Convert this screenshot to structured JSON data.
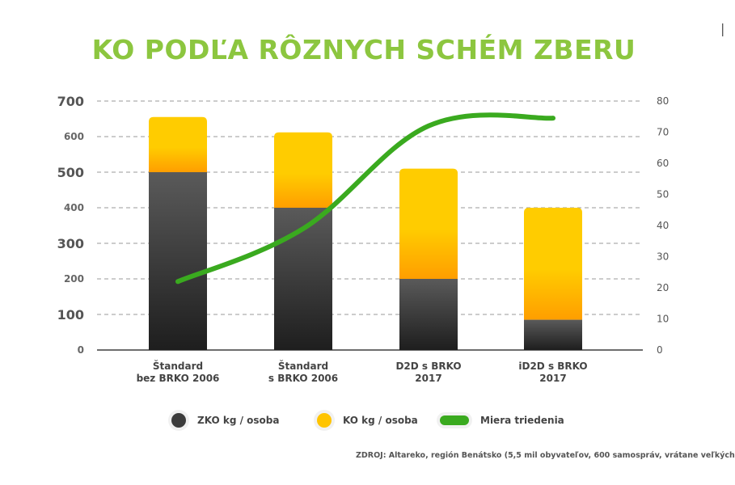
{
  "title": "KO PODĽA RÔZNYCH SCHÉM ZBERU",
  "corner_mark": "|",
  "legend": {
    "zko": "ZKO kg / osoba",
    "ko": "KO kg / osoba",
    "rate": "Miera triedenia"
  },
  "source": "ZDROJ: Altareko, región Benátsko (5,5 mil obyvateľov, 600 samospráv, vrátane veľkých",
  "colors": {
    "title": "#8cc63f",
    "zko_top": "#5a5a5a",
    "zko_bottom": "#1e1e1e",
    "ko_top": "#ffcc00",
    "ko_bottom": "#ff9e00",
    "rate_line": "#3aaa1f",
    "grid": "#9a9a9a"
  },
  "chart_data": {
    "type": "bar",
    "categories": [
      [
        "Štandard",
        "bez BRKO 2006"
      ],
      [
        "Štandard",
        "s BRKO 2006"
      ],
      [
        "D2D s BRKO",
        "2017"
      ],
      [
        "iD2D s BRKO",
        "2017"
      ]
    ],
    "series": [
      {
        "name": "ZKO kg / osoba",
        "values": [
          500,
          400,
          200,
          85
        ]
      },
      {
        "name": "KO kg / osoba",
        "values": [
          655,
          612,
          510,
          400
        ]
      },
      {
        "name": "Miera triedenia",
        "type": "line",
        "axis": "right",
        "values": [
          22,
          39,
          72,
          74.5
        ]
      }
    ],
    "y_left": {
      "min": 0,
      "max": 700,
      "ticks": [
        "0",
        "100",
        "200",
        "300",
        "400",
        "500",
        "600",
        "700"
      ]
    },
    "y_right": {
      "min": 0,
      "max": 80,
      "ticks": [
        "0",
        "10",
        "20",
        "30",
        "40",
        "50",
        "60",
        "70",
        "80"
      ]
    },
    "grid": true,
    "legend_position": "bottom"
  }
}
